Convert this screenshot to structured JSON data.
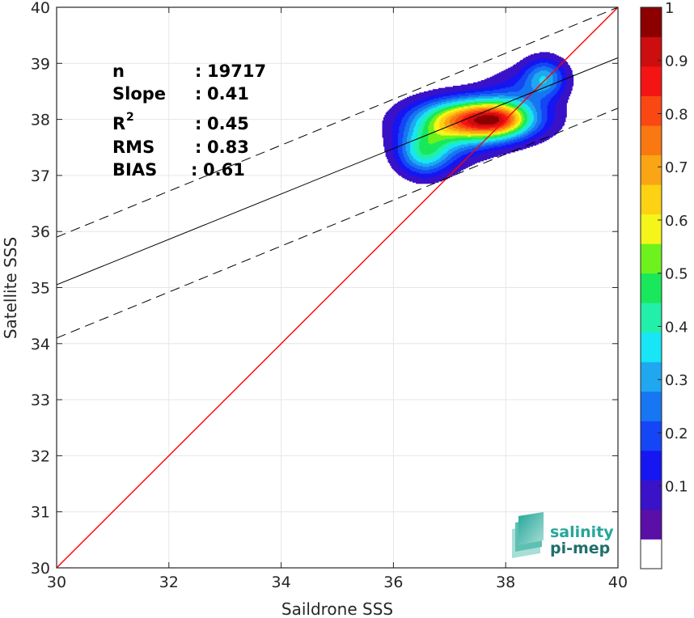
{
  "chart_data": {
    "type": "heatmap",
    "xlabel": "Saildrone SSS",
    "ylabel": "Satellite SSS",
    "xlim": [
      30,
      40
    ],
    "ylim": [
      30,
      40
    ],
    "xticks": [
      "30",
      "32",
      "34",
      "36",
      "38",
      "40"
    ],
    "yticks": [
      "30",
      "31",
      "32",
      "33",
      "34",
      "35",
      "36",
      "37",
      "38",
      "39",
      "40"
    ],
    "grid": true,
    "stats": [
      {
        "key": "n",
        "sep": ":",
        "value": "19717"
      },
      {
        "key": "Slope",
        "sep": ":",
        "value": "0.41"
      },
      {
        "key": "R",
        "sup": "2",
        "sep": ":",
        "value": "0.45"
      },
      {
        "key": "RMS",
        "sep": ":",
        "value": "0.83"
      },
      {
        "key": "BIAS",
        "sep": ":",
        "value": "0.61"
      }
    ],
    "one_to_one_line": {
      "color": "#ff0000",
      "from": [
        30,
        30
      ],
      "to": [
        40,
        40
      ]
    },
    "regression_line": {
      "intercept_at_30": 35.05,
      "value_at_40": 39.1,
      "color": "#000000"
    },
    "regression_bounds": [
      {
        "intercept_at_30": 35.9,
        "value_at_40": 40.0,
        "style": "dashed"
      },
      {
        "intercept_at_30": 34.1,
        "value_at_40": 38.2,
        "style": "dashed"
      }
    ],
    "density_clusters": [
      {
        "x": 37.45,
        "y": 38.0,
        "sx": 0.68,
        "sy": 0.26,
        "w": 1.0
      },
      {
        "x": 37.9,
        "y": 38.0,
        "sx": 0.35,
        "sy": 0.2,
        "w": 0.35
      },
      {
        "x": 36.55,
        "y": 37.4,
        "sx": 0.32,
        "sy": 0.28,
        "w": 0.42
      },
      {
        "x": 38.7,
        "y": 38.75,
        "sx": 0.26,
        "sy": 0.24,
        "w": 0.36
      },
      {
        "x": 38.25,
        "y": 38.5,
        "sx": 0.45,
        "sy": 0.3,
        "w": 0.16
      },
      {
        "x": 36.9,
        "y": 37.6,
        "sx": 0.55,
        "sy": 0.3,
        "w": 0.2
      }
    ],
    "colorbar": {
      "min": 0,
      "max": 1,
      "ticks": [
        "0.1",
        "0.2",
        "0.3",
        "0.4",
        "0.5",
        "0.6",
        "0.7",
        "0.8",
        "0.9",
        "1"
      ],
      "colors": [
        "#ffffff",
        "#5a0fa6",
        "#3a12c8",
        "#1616f2",
        "#1446f5",
        "#1776f2",
        "#1fa8f0",
        "#16e6f5",
        "#22efaa",
        "#18e85a",
        "#6ef21e",
        "#f5f51a",
        "#fcd212",
        "#faa514",
        "#fa7812",
        "#fa4814",
        "#f51414",
        "#cc0e0e",
        "#8c0000"
      ]
    },
    "logo": {
      "line1": "salinity",
      "line2": "pi-mep"
    }
  }
}
